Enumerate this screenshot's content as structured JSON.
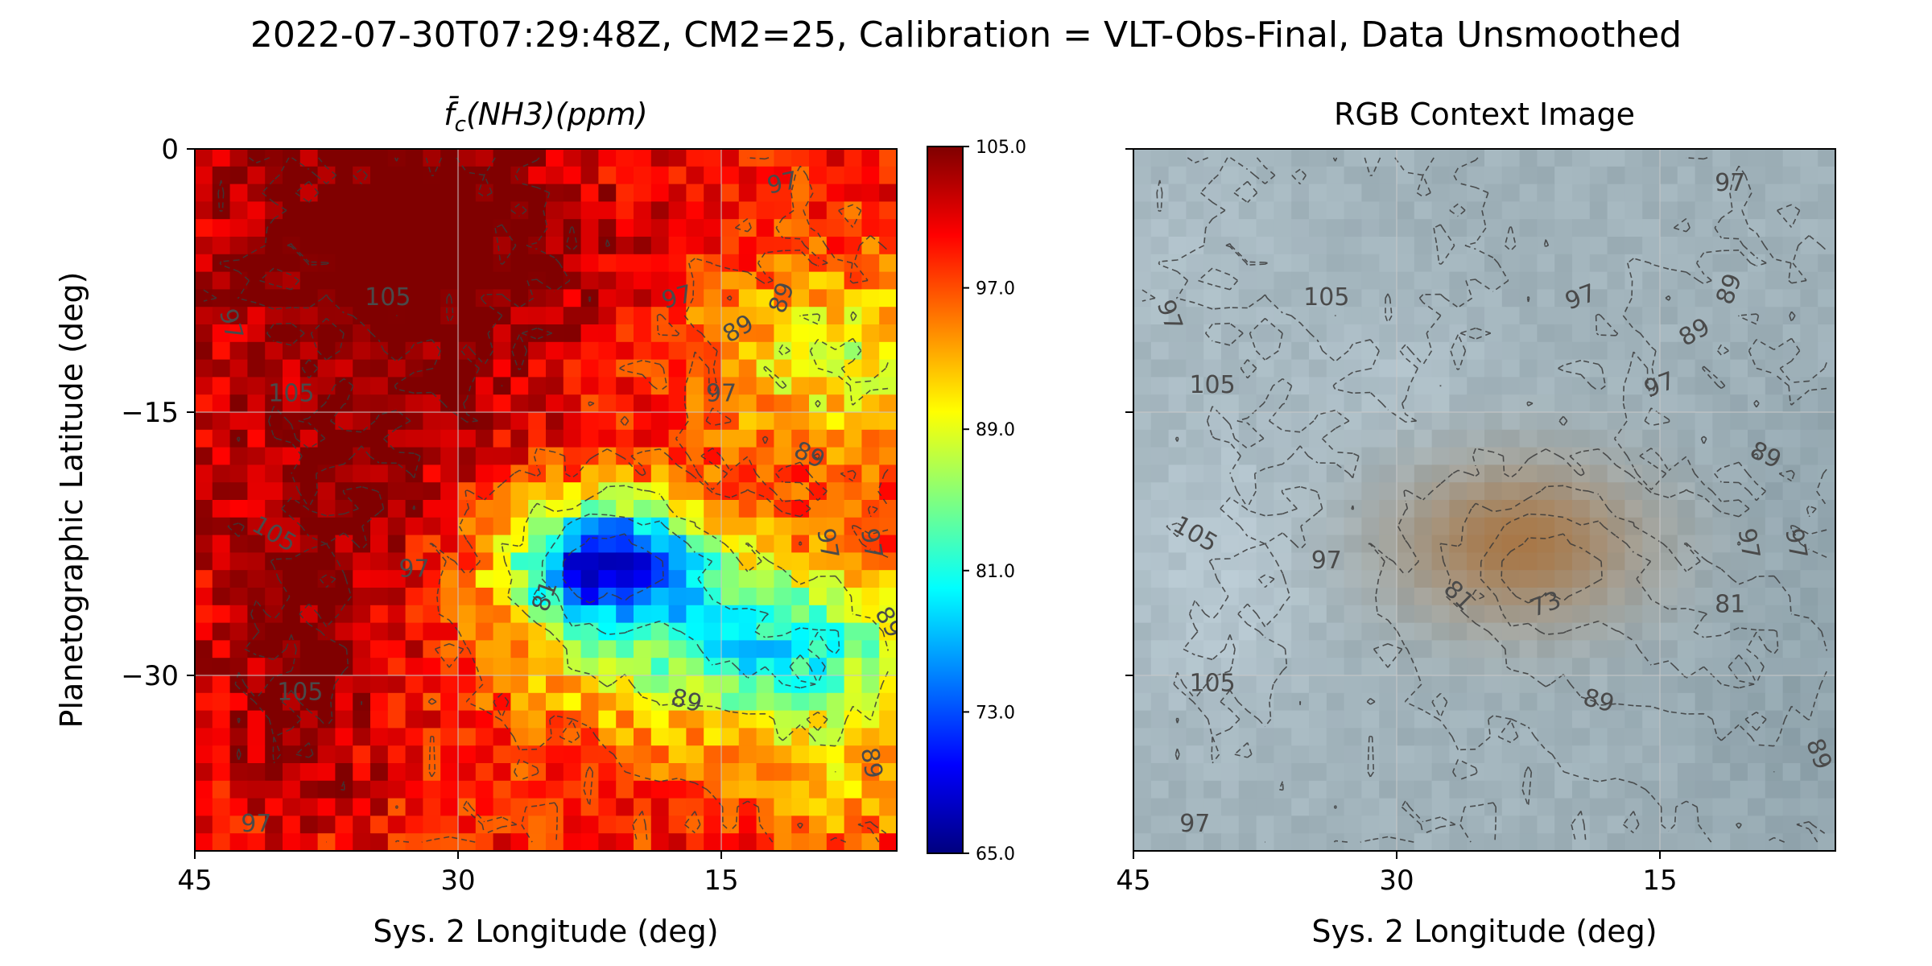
{
  "figure": {
    "title": "2022-07-30T07:29:48Z, CM2=25, Calibration = VLT-Obs-Final, Data Unsmoothed"
  },
  "chart_data": [
    {
      "type": "heatmap",
      "title": "f̄c(NH3)(ppm)",
      "title_parts": {
        "f": "f̄",
        "sub": "c",
        "rest": "(NH3)(ppm)"
      },
      "xlabel": "Sys. 2 Longitude (deg)",
      "ylabel": "Planetographic Latitude (deg)",
      "xlim": [
        45,
        5
      ],
      "ylim": [
        -40,
        0
      ],
      "xticks": [
        "45",
        "30",
        "15"
      ],
      "yticks": [
        "0",
        "−15",
        "−30"
      ],
      "grid": true,
      "colormap": "jet",
      "colorbar": {
        "vmin": 65.0,
        "vmax": 105.0,
        "ticks": [
          "105.0",
          "97.0",
          "89.0",
          "81.0",
          "73.0",
          "65.0"
        ]
      },
      "contour_levels": [
        73,
        81,
        89,
        97,
        105
      ],
      "contour_labels": [
        {
          "text": "97",
          "lon": 11.5,
          "lat": -2.0,
          "rot": -12
        },
        {
          "text": "105",
          "lon": 34,
          "lat": -8.5,
          "rot": 0
        },
        {
          "text": "97",
          "lon": 17.5,
          "lat": -8.5,
          "rot": -15
        },
        {
          "text": "89",
          "lon": 11.5,
          "lat": -8.5,
          "rot": -70
        },
        {
          "text": "89",
          "lon": 14,
          "lat": -10.3,
          "rot": -30
        },
        {
          "text": "97",
          "lon": 43,
          "lat": -10,
          "rot": 75
        },
        {
          "text": "105",
          "lon": 39.5,
          "lat": -14,
          "rot": 0
        },
        {
          "text": "97",
          "lon": 15,
          "lat": -14,
          "rot": 0
        },
        {
          "text": "89",
          "lon": 10,
          "lat": -17.5,
          "rot": 25
        },
        {
          "text": "105",
          "lon": 40.5,
          "lat": -22,
          "rot": 30
        },
        {
          "text": "97",
          "lon": 32.5,
          "lat": -24,
          "rot": 0
        },
        {
          "text": "97",
          "lon": 9,
          "lat": -22.5,
          "rot": 80
        },
        {
          "text": "97",
          "lon": 6.5,
          "lat": -22.5,
          "rot": 80
        },
        {
          "text": "81",
          "lon": 25,
          "lat": -25.5,
          "rot": -70
        },
        {
          "text": "89",
          "lon": 5.5,
          "lat": -27,
          "rot": 60
        },
        {
          "text": "105",
          "lon": 39,
          "lat": -31,
          "rot": 0
        },
        {
          "text": "89",
          "lon": 17,
          "lat": -31.5,
          "rot": 15
        },
        {
          "text": "89",
          "lon": 6.5,
          "lat": -35,
          "rot": 80
        },
        {
          "text": "97",
          "lon": 41.5,
          "lat": -38.5,
          "rot": 0
        }
      ],
      "field_description": "Ammonia abundance map; saturated >=105 ppm over most of western/northern region, a depleted core (~65-75 ppm) near lon 17-27, lat -21 to -27, moderately low (80-90 ppm) band to the south and east."
    },
    {
      "type": "heatmap",
      "title": "RGB Context Image",
      "xlabel": "Sys. 2 Longitude (deg)",
      "xlim": [
        45,
        5
      ],
      "ylim": [
        -40,
        0
      ],
      "xticks": [
        "45",
        "30",
        "15"
      ],
      "grid": true,
      "contour_levels": [
        73,
        81,
        89,
        97,
        105
      ],
      "contour_labels": [
        {
          "text": "97",
          "lon": 11,
          "lat": -2,
          "rot": 0
        },
        {
          "text": "105",
          "lon": 34,
          "lat": -8.5,
          "rot": 0
        },
        {
          "text": "97",
          "lon": 19.5,
          "lat": -8.5,
          "rot": -20
        },
        {
          "text": "89",
          "lon": 13,
          "lat": -10.5,
          "rot": -30
        },
        {
          "text": "89",
          "lon": 11,
          "lat": -8,
          "rot": -70
        },
        {
          "text": "97",
          "lon": 43,
          "lat": -9.5,
          "rot": 70
        },
        {
          "text": "105",
          "lon": 40.5,
          "lat": -13.5,
          "rot": 0
        },
        {
          "text": "97",
          "lon": 15,
          "lat": -13.5,
          "rot": -20
        },
        {
          "text": "89",
          "lon": 9,
          "lat": -17.5,
          "rot": 25
        },
        {
          "text": "105",
          "lon": 41.5,
          "lat": -22,
          "rot": 30
        },
        {
          "text": "97",
          "lon": 34,
          "lat": -23.5,
          "rot": 0
        },
        {
          "text": "81",
          "lon": 26.5,
          "lat": -25.5,
          "rot": 45
        },
        {
          "text": "73",
          "lon": 21.5,
          "lat": -26,
          "rot": -20
        },
        {
          "text": "97",
          "lon": 10,
          "lat": -22.5,
          "rot": 80
        },
        {
          "text": "97",
          "lon": 7.3,
          "lat": -22.5,
          "rot": 80
        },
        {
          "text": "81",
          "lon": 11,
          "lat": -26,
          "rot": 0
        },
        {
          "text": "105",
          "lon": 40.5,
          "lat": -30.5,
          "rot": 0
        },
        {
          "text": "89",
          "lon": 18.5,
          "lat": -31.5,
          "rot": 15
        },
        {
          "text": "89",
          "lon": 6,
          "lat": -34.5,
          "rot": 70
        },
        {
          "text": "97",
          "lon": 41.5,
          "lat": -38.5,
          "rot": 0
        }
      ],
      "field_description": "Pixelated visible-light context image: pale blue-grey clouds, a brown-orange oval feature centred near lon 23, lat -22.5."
    }
  ],
  "colors": {
    "background": "#ffffff",
    "contour": "#3a3a3a",
    "grid": "#c8c8c8",
    "oval": "#b07a45",
    "clouds": "#b9cdd6"
  }
}
